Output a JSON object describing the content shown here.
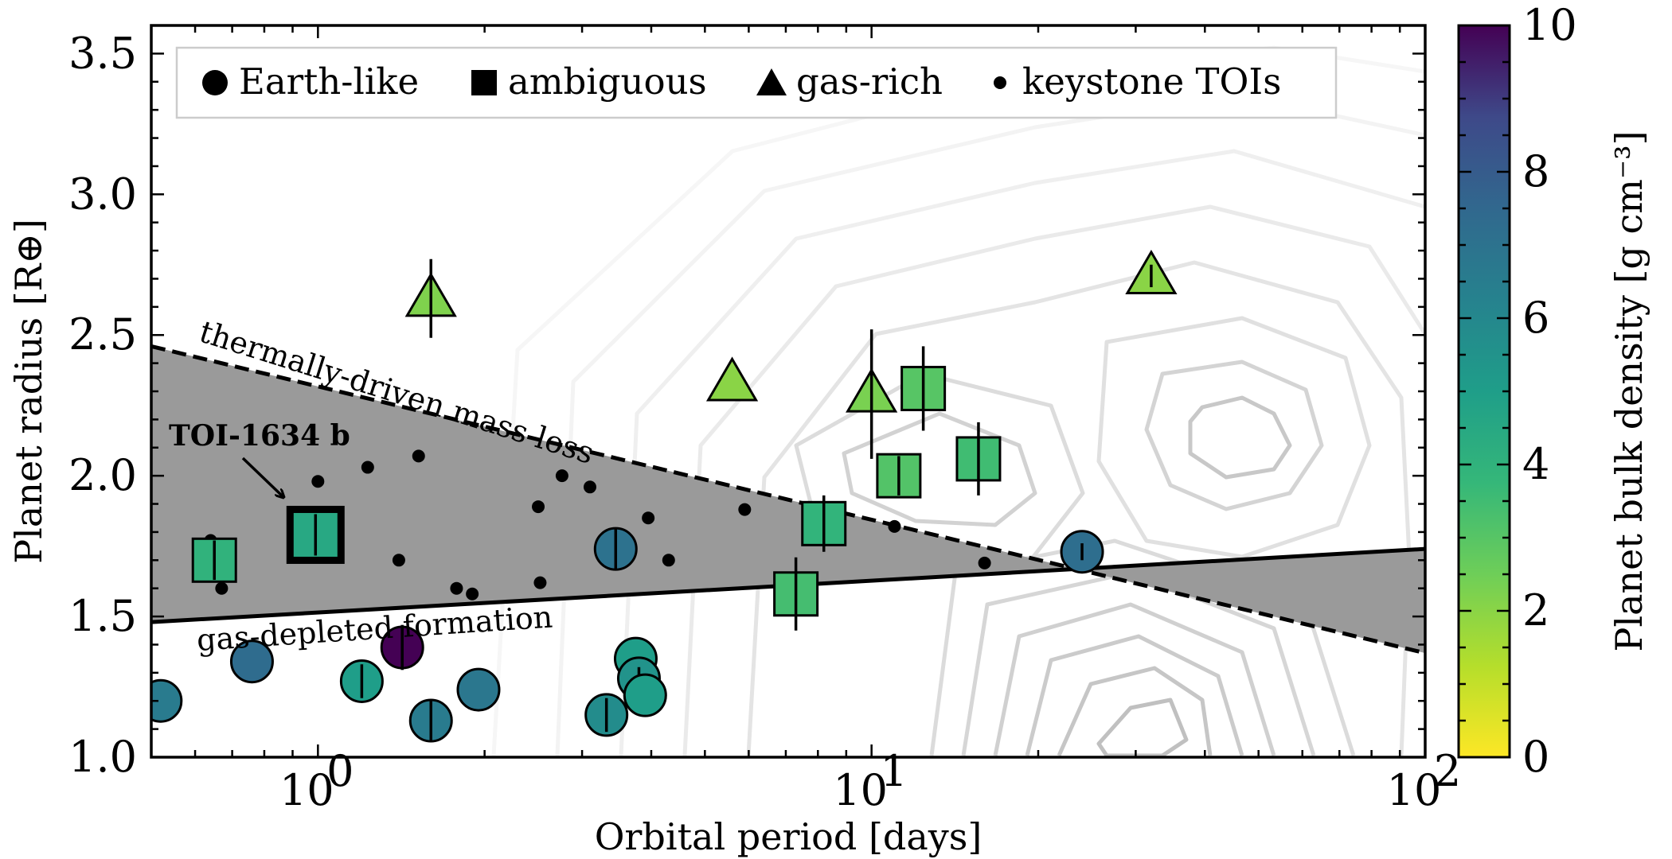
{
  "chart_data": {
    "type": "scatter",
    "xlabel": "Orbital period [days]",
    "ylabel": "Planet radius [R⊕]",
    "xscale": "log",
    "xlim": [
      0.5,
      100
    ],
    "ylim": [
      1.0,
      3.6
    ],
    "x_ticks": [
      {
        "value": 1,
        "base": "10",
        "exp": "0"
      },
      {
        "value": 10,
        "base": "10",
        "exp": "1"
      },
      {
        "value": 100,
        "base": "10",
        "exp": "2"
      }
    ],
    "y_ticks": [
      "1.0",
      "1.5",
      "2.0",
      "2.5",
      "3.0",
      "3.5"
    ],
    "colorbar": {
      "label": "Planet bulk density [g cm⁻³]",
      "range": [
        0,
        10
      ],
      "ticks": [
        "0",
        "2",
        "4",
        "6",
        "8",
        "10"
      ],
      "colormap": "viridis_r"
    },
    "legend": {
      "placement": "top-left",
      "entries": [
        {
          "label": "Earth-like",
          "marker": "circle"
        },
        {
          "label": "ambiguous",
          "marker": "square"
        },
        {
          "label": "gas-rich",
          "marker": "triangle"
        },
        {
          "label": "keystone TOIs",
          "marker": "small-dot"
        }
      ]
    },
    "lines": [
      {
        "label": "thermally-driven mass loss",
        "style": "dashed",
        "points": [
          [
            0.5,
            2.46
          ],
          [
            100,
            1.37
          ]
        ]
      },
      {
        "label": "gas-depleted formation",
        "style": "solid",
        "points": [
          [
            0.5,
            1.48
          ],
          [
            100,
            1.74
          ]
        ]
      }
    ],
    "highlight": {
      "label": "TOI-1634 b",
      "x": 0.99,
      "y": 1.79,
      "density": 4.5
    },
    "earth_like": [
      {
        "x": 0.52,
        "y": 1.2,
        "err": 0,
        "density": 6.6
      },
      {
        "x": 0.76,
        "y": 1.34,
        "err": 0,
        "density": 7.3
      },
      {
        "x": 1.2,
        "y": 1.27,
        "err": 0.06,
        "density": 5.0
      },
      {
        "x": 1.42,
        "y": 1.39,
        "err": 0.08,
        "density": 10.0
      },
      {
        "x": 1.6,
        "y": 1.13,
        "err": 0.07,
        "density": 6.6
      },
      {
        "x": 1.95,
        "y": 1.24,
        "err": 0,
        "density": 6.8
      },
      {
        "x": 3.45,
        "y": 1.74,
        "err": 0.07,
        "density": 7.0
      },
      {
        "x": 3.32,
        "y": 1.15,
        "err": 0.06,
        "density": 5.8
      },
      {
        "x": 3.75,
        "y": 1.35,
        "err": 0,
        "density": 5.0
      },
      {
        "x": 3.8,
        "y": 1.28,
        "err": 0.04,
        "density": 5.5
      },
      {
        "x": 3.9,
        "y": 1.22,
        "err": 0,
        "density": 5.0
      },
      {
        "x": 24.0,
        "y": 1.73,
        "err": 0.03,
        "density": 7.2
      }
    ],
    "ambiguous": [
      {
        "x": 0.65,
        "y": 1.7,
        "err": 0.07,
        "density": 4.0
      },
      {
        "x": 7.3,
        "y": 1.58,
        "err": 0.13,
        "density": 3.4
      },
      {
        "x": 8.2,
        "y": 1.83,
        "err": 0.1,
        "density": 3.9
      },
      {
        "x": 11.2,
        "y": 2.0,
        "err": 0.07,
        "density": 3.1
      },
      {
        "x": 12.4,
        "y": 2.31,
        "err": 0.15,
        "density": 3.0
      },
      {
        "x": 15.6,
        "y": 2.06,
        "err": 0.13,
        "density": 3.5
      }
    ],
    "gas_rich": [
      {
        "x": 1.6,
        "y": 2.63,
        "err": 0.14,
        "density": 2.2
      },
      {
        "x": 5.6,
        "y": 2.33,
        "err": 0,
        "density": 2.0
      },
      {
        "x": 10.0,
        "y": 2.29,
        "err": 0.23,
        "density": 2.3
      },
      {
        "x": 32.0,
        "y": 2.71,
        "err": 0.04,
        "density": 2.0
      }
    ],
    "keystone_tois": [
      {
        "x": 0.64,
        "y": 1.77
      },
      {
        "x": 0.67,
        "y": 1.6
      },
      {
        "x": 1.0,
        "y": 1.98
      },
      {
        "x": 1.23,
        "y": 2.03
      },
      {
        "x": 1.4,
        "y": 1.7
      },
      {
        "x": 1.52,
        "y": 2.07
      },
      {
        "x": 1.78,
        "y": 1.6
      },
      {
        "x": 1.9,
        "y": 1.58
      },
      {
        "x": 2.5,
        "y": 1.89
      },
      {
        "x": 2.52,
        "y": 1.62
      },
      {
        "x": 2.76,
        "y": 2.0
      },
      {
        "x": 3.1,
        "y": 1.96
      },
      {
        "x": 3.95,
        "y": 1.85
      },
      {
        "x": 4.3,
        "y": 1.7
      },
      {
        "x": 5.9,
        "y": 1.88
      },
      {
        "x": 11.0,
        "y": 1.82
      },
      {
        "x": 16.0,
        "y": 1.69
      }
    ]
  }
}
